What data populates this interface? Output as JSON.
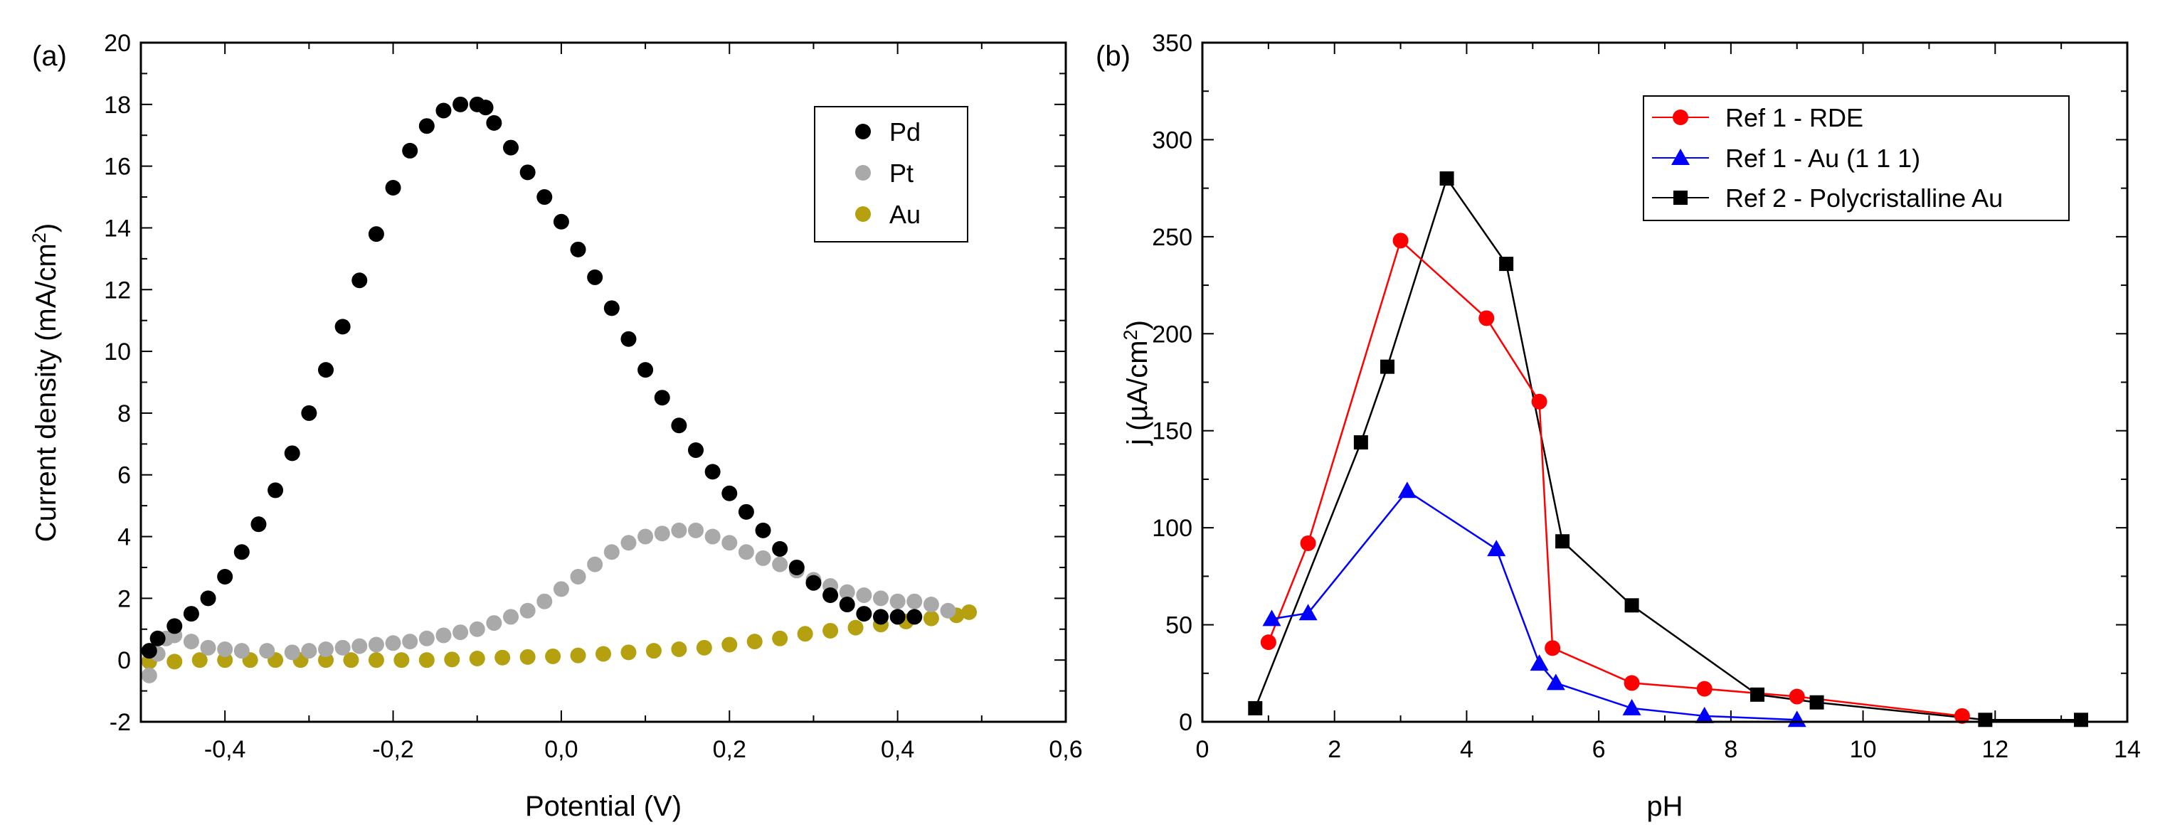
{
  "chart_data": [
    {
      "type": "scatter",
      "panel_label": "(a)",
      "title": "",
      "xlabel": "Potential (V)",
      "ylabel_main": "Current density (mA/cm",
      "ylabel_sup": "2",
      "ylabel_close": ")",
      "xlim": [
        -0.5,
        0.6
      ],
      "ylim": [
        -2,
        20
      ],
      "xticks": [
        -0.4,
        -0.2,
        0.0,
        0.2,
        0.4,
        0.6
      ],
      "xtick_labels": [
        "-0,4",
        "-0,2",
        "0,0",
        "0,2",
        "0,4",
        "0,6"
      ],
      "yticks": [
        -2,
        0,
        2,
        4,
        6,
        8,
        10,
        12,
        14,
        16,
        18,
        20
      ],
      "ytick_labels": [
        "-2",
        "0",
        "2",
        "4",
        "6",
        "8",
        "10",
        "12",
        "14",
        "16",
        "18",
        "20"
      ],
      "legend_position": "top-right",
      "series": [
        {
          "name": "Pd",
          "color": "#000000",
          "x": [
            -0.49,
            -0.48,
            -0.46,
            -0.44,
            -0.42,
            -0.4,
            -0.38,
            -0.36,
            -0.34,
            -0.32,
            -0.3,
            -0.28,
            -0.26,
            -0.24,
            -0.22,
            -0.2,
            -0.18,
            -0.16,
            -0.14,
            -0.12,
            -0.1,
            -0.09,
            -0.08,
            -0.06,
            -0.04,
            -0.02,
            0.0,
            0.02,
            0.04,
            0.06,
            0.08,
            0.1,
            0.12,
            0.14,
            0.16,
            0.18,
            0.2,
            0.22,
            0.24,
            0.26,
            0.28,
            0.3,
            0.32,
            0.34,
            0.36,
            0.38,
            0.4,
            0.42
          ],
          "y": [
            0.3,
            0.7,
            1.1,
            1.5,
            2.0,
            2.7,
            3.5,
            4.4,
            5.5,
            6.7,
            8.0,
            9.4,
            10.8,
            12.3,
            13.8,
            15.3,
            16.5,
            17.3,
            17.8,
            18.0,
            18.0,
            17.9,
            17.4,
            16.6,
            15.8,
            15.0,
            14.2,
            13.3,
            12.4,
            11.4,
            10.4,
            9.4,
            8.5,
            7.6,
            6.8,
            6.1,
            5.4,
            4.8,
            4.2,
            3.6,
            3.0,
            2.5,
            2.1,
            1.8,
            1.5,
            1.4,
            1.4,
            1.4
          ]
        },
        {
          "name": "Pt",
          "color": "#a9a9a9",
          "x": [
            -0.49,
            -0.48,
            -0.47,
            -0.46,
            -0.44,
            -0.42,
            -0.4,
            -0.38,
            -0.35,
            -0.32,
            -0.3,
            -0.28,
            -0.26,
            -0.24,
            -0.22,
            -0.2,
            -0.18,
            -0.16,
            -0.14,
            -0.12,
            -0.1,
            -0.08,
            -0.06,
            -0.04,
            -0.02,
            0.0,
            0.02,
            0.04,
            0.06,
            0.08,
            0.1,
            0.12,
            0.14,
            0.16,
            0.18,
            0.2,
            0.22,
            0.24,
            0.26,
            0.28,
            0.3,
            0.32,
            0.34,
            0.36,
            0.38,
            0.4,
            0.42,
            0.44,
            0.46
          ],
          "y": [
            -0.5,
            0.2,
            0.7,
            0.8,
            0.6,
            0.4,
            0.35,
            0.3,
            0.3,
            0.25,
            0.3,
            0.35,
            0.4,
            0.45,
            0.5,
            0.55,
            0.6,
            0.7,
            0.8,
            0.9,
            1.0,
            1.2,
            1.4,
            1.6,
            1.9,
            2.3,
            2.7,
            3.1,
            3.5,
            3.8,
            4.0,
            4.1,
            4.2,
            4.2,
            4.0,
            3.8,
            3.5,
            3.3,
            3.1,
            2.9,
            2.6,
            2.4,
            2.2,
            2.1,
            2.0,
            1.9,
            1.9,
            1.8,
            1.6
          ]
        },
        {
          "name": "Au",
          "color": "#b5a00f",
          "x": [
            -0.49,
            -0.46,
            -0.43,
            -0.4,
            -0.37,
            -0.34,
            -0.31,
            -0.28,
            -0.25,
            -0.22,
            -0.19,
            -0.16,
            -0.13,
            -0.1,
            -0.07,
            -0.04,
            -0.01,
            0.02,
            0.05,
            0.08,
            0.11,
            0.14,
            0.17,
            0.2,
            0.23,
            0.26,
            0.29,
            0.32,
            0.35,
            0.38,
            0.41,
            0.44,
            0.47,
            0.485
          ],
          "y": [
            -0.05,
            -0.05,
            0.0,
            0.0,
            0.0,
            0.0,
            0.0,
            0.0,
            0.0,
            0.0,
            0.0,
            0.0,
            0.02,
            0.05,
            0.08,
            0.1,
            0.12,
            0.15,
            0.2,
            0.25,
            0.3,
            0.35,
            0.4,
            0.5,
            0.6,
            0.7,
            0.85,
            0.95,
            1.05,
            1.15,
            1.25,
            1.35,
            1.45,
            1.55
          ]
        }
      ]
    },
    {
      "type": "line",
      "panel_label": "(b)",
      "title": "",
      "xlabel": "pH",
      "ylabel_main": "j (µA/cm",
      "ylabel_sup": "2",
      "ylabel_close": ")",
      "xlim": [
        0,
        14
      ],
      "ylim": [
        0,
        350
      ],
      "xticks": [
        0,
        2,
        4,
        6,
        8,
        10,
        12,
        14
      ],
      "xtick_labels": [
        "0",
        "2",
        "4",
        "6",
        "8",
        "10",
        "12",
        "14"
      ],
      "yticks": [
        0,
        50,
        100,
        150,
        200,
        250,
        300,
        350
      ],
      "ytick_labels": [
        "0",
        "50",
        "100",
        "150",
        "200",
        "250",
        "300",
        "350"
      ],
      "legend_position": "top-right",
      "series": [
        {
          "name": "Ref 1 - RDE",
          "color": "#ff0000",
          "marker": "circle",
          "x": [
            1.0,
            1.6,
            3.0,
            4.3,
            5.1,
            5.3,
            6.5,
            7.6,
            9.0,
            11.5
          ],
          "y": [
            41,
            92,
            248,
            208,
            165,
            38,
            20,
            17,
            13,
            3
          ]
        },
        {
          "name": "Ref 1 - Au (1 1 1)",
          "color": "#0000ff",
          "marker": "triangle",
          "x": [
            1.05,
            1.6,
            3.1,
            4.45,
            5.1,
            5.35,
            6.5,
            7.6,
            9.0
          ],
          "y": [
            53,
            56,
            119,
            89,
            30,
            20,
            7,
            3,
            1
          ]
        },
        {
          "name": "Ref 2 - Polycristalline Au",
          "color": "#000000",
          "marker": "square",
          "x": [
            0.8,
            2.4,
            2.8,
            3.7,
            4.6,
            5.45,
            6.5,
            8.4,
            9.3,
            11.85,
            13.3
          ],
          "y": [
            7,
            144,
            183,
            280,
            236,
            93,
            60,
            14,
            10,
            1,
            1
          ]
        }
      ]
    }
  ]
}
